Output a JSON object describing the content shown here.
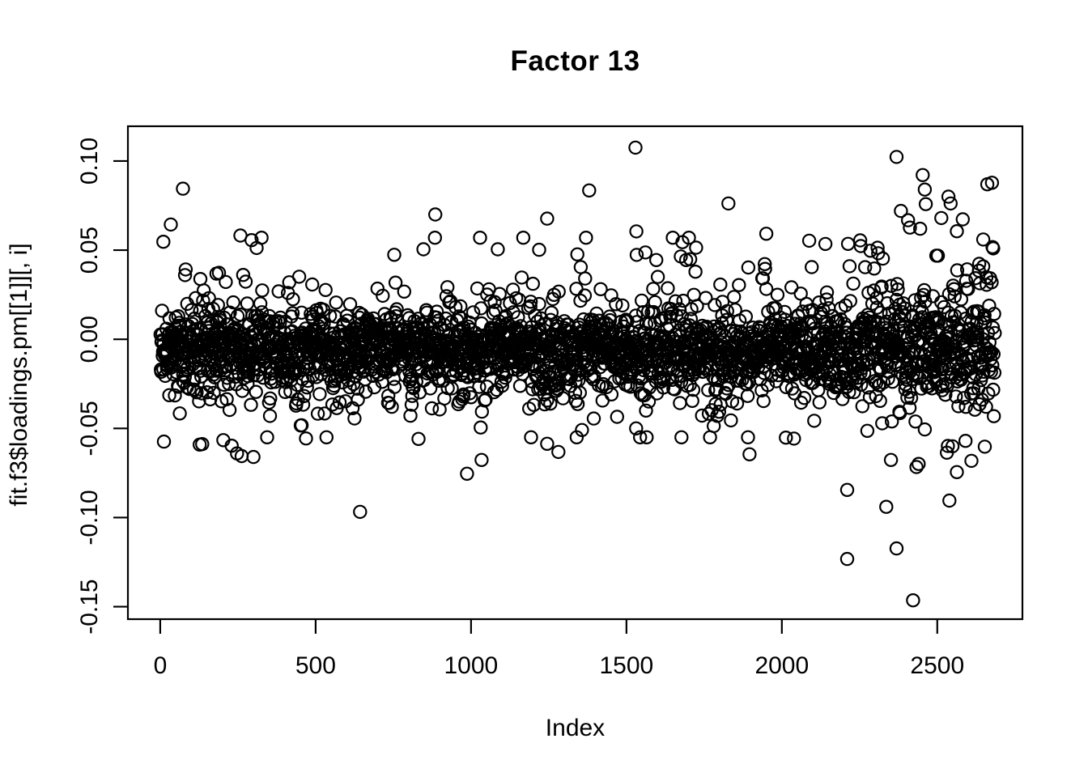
{
  "chart_data": {
    "type": "scatter",
    "title": "Factor 13",
    "xlabel": "Index",
    "ylabel": "fit.f3$loadings.pm[[1]][, i]",
    "marker": "open-circle",
    "point_color": "#000000",
    "background": "#ffffff",
    "grid": "off",
    "legend": "none",
    "x_axis": {
      "lim": [
        -104,
        2774
      ],
      "ticks": [
        {
          "v": 0,
          "label": "0"
        },
        {
          "v": 500,
          "label": "500"
        },
        {
          "v": 1000,
          "label": "1000"
        },
        {
          "v": 1500,
          "label": "1500"
        },
        {
          "v": 2000,
          "label": "2000"
        },
        {
          "v": 2500,
          "label": "2500"
        }
      ]
    },
    "y_axis": {
      "lim": [
        -0.157,
        0.1195
      ],
      "ticks": [
        {
          "v": 0.1,
          "label": "0.10"
        },
        {
          "v": 0.05,
          "label": "0.05"
        },
        {
          "v": 0.0,
          "label": "0.00"
        },
        {
          "v": -0.05,
          "label": "-0.05"
        },
        {
          "v": -0.1,
          "label": "-0.10"
        },
        {
          "v": -0.15,
          "label": "-0.15"
        }
      ]
    },
    "n_points": 2685,
    "distribution": {
      "seed": 1337,
      "mean": -0.0055,
      "components": [
        {
          "p": 0.68,
          "sd": 0.0105
        },
        {
          "p": 0.22,
          "sd": 0.019
        },
        {
          "p": 0.085,
          "sd": 0.028
        },
        {
          "p": 0.015,
          "sd": 0.04
        }
      ],
      "right_spread": {
        "start": 2000,
        "scale": 0.55,
        "span": 685,
        "pow": 1.3
      },
      "left_spread": {
        "end": 250,
        "scale": 0.15
      },
      "pos_tail_boost": 1.18,
      "clamp_neg": 0.055,
      "clamp_pos": 0.057
    },
    "outliers": [
      [
        10,
        0.0547
      ],
      [
        73,
        0.0845
      ],
      [
        258,
        0.0582
      ],
      [
        294,
        0.0556
      ],
      [
        310,
        0.0512
      ],
      [
        885,
        0.07
      ],
      [
        1086,
        0.0505
      ],
      [
        1219,
        0.0502
      ],
      [
        1245,
        0.0677
      ],
      [
        1380,
        0.0835
      ],
      [
        1529,
        0.1075
      ],
      [
        1532,
        0.0605
      ],
      [
        1680,
        0.0545
      ],
      [
        1724,
        0.0514
      ],
      [
        1828,
        0.0762
      ],
      [
        1950,
        0.0592
      ],
      [
        2088,
        0.0553
      ],
      [
        2140,
        0.0535
      ],
      [
        2252,
        0.0555
      ],
      [
        2369,
        0.1023
      ],
      [
        2383,
        0.072
      ],
      [
        2406,
        0.0668
      ],
      [
        2445,
        0.062
      ],
      [
        2453,
        0.0921
      ],
      [
        2460,
        0.084
      ],
      [
        2513,
        0.068
      ],
      [
        2536,
        0.08
      ],
      [
        2543,
        0.0762
      ],
      [
        2648,
        0.056
      ],
      [
        2680,
        0.051
      ],
      [
        230,
        -0.0597
      ],
      [
        247,
        -0.064
      ],
      [
        262,
        -0.0655
      ],
      [
        300,
        -0.066
      ],
      [
        455,
        -0.0482
      ],
      [
        469,
        -0.0556
      ],
      [
        643,
        -0.0968
      ],
      [
        831,
        -0.0559
      ],
      [
        987,
        -0.0754
      ],
      [
        1034,
        -0.0677
      ],
      [
        1245,
        -0.0586
      ],
      [
        1281,
        -0.0632
      ],
      [
        1531,
        -0.05
      ],
      [
        1836,
        -0.0455
      ],
      [
        1896,
        -0.0645
      ],
      [
        2210,
        -0.1232
      ],
      [
        2210,
        -0.0845
      ],
      [
        2336,
        -0.094
      ],
      [
        2369,
        -0.1173
      ],
      [
        2422,
        -0.1464
      ],
      [
        2531,
        -0.0636
      ],
      [
        2539,
        -0.0905
      ],
      [
        2563,
        -0.0745
      ],
      [
        2591,
        -0.057
      ]
    ]
  },
  "layout_text": {
    "note": ""
  }
}
